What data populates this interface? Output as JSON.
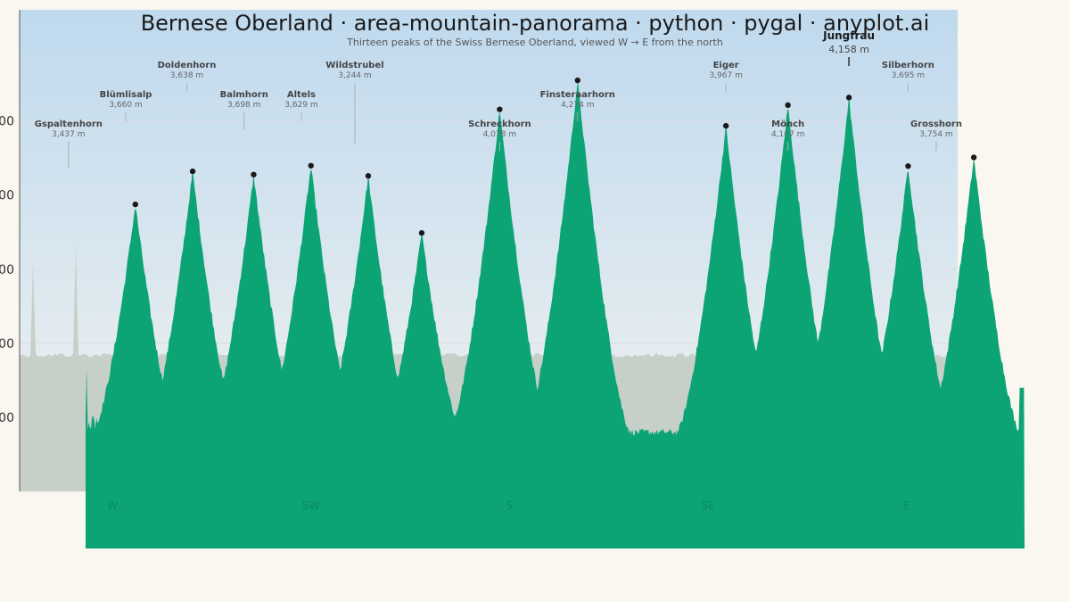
{
  "chart_data": {
    "type": "area",
    "title": "Bernese Oberland · area-mountain-panorama · python · pygal · anyplot.ai",
    "subtitle": "Thirteen peaks of the Swiss Bernese Oberland, viewed W → E from the north",
    "ylim": [
      1500,
      4750
    ],
    "y_ticks": [
      {
        "value": 2000,
        "label": "00"
      },
      {
        "value": 2500,
        "label": "00"
      },
      {
        "value": 3000,
        "label": "00"
      },
      {
        "value": 3500,
        "label": "00"
      },
      {
        "value": 4000,
        "label": "00"
      }
    ],
    "x_ticks": [
      "W",
      "SW",
      "S",
      "SE",
      "E"
    ],
    "x_range": [
      0,
      100
    ],
    "ridge_level": 2420,
    "base_level": 1900,
    "highlight": "Jungfrau",
    "peaks": [
      {
        "name": "Gspaltenhorn",
        "elevation": 3437,
        "elevation_label": "3,437 m",
        "x": 5.3
      },
      {
        "name": "Blümlisalp",
        "elevation": 3660,
        "elevation_label": "3,660 m",
        "x": 11.4
      },
      {
        "name": "Doldenhorn",
        "elevation": 3638,
        "elevation_label": "3,638 m",
        "x": 17.9
      },
      {
        "name": "Balmhorn",
        "elevation": 3698,
        "elevation_label": "3,698 m",
        "x": 24.0
      },
      {
        "name": "Altels",
        "elevation": 3629,
        "elevation_label": "3,629 m",
        "x": 30.1
      },
      {
        "name": "Wildstrubel",
        "elevation": 3244,
        "elevation_label": "3,244 m",
        "x": 35.8
      },
      {
        "name": "Schreckhorn",
        "elevation": 4078,
        "elevation_label": "4,078 m",
        "x": 44.1
      },
      {
        "name": "Finsteraarhorn",
        "elevation": 4274,
        "elevation_label": "4,274 m",
        "x": 52.4
      },
      {
        "name": "Eiger",
        "elevation": 3967,
        "elevation_label": "3,967 m",
        "x": 68.2
      },
      {
        "name": "Mönch",
        "elevation": 4107,
        "elevation_label": "4,107 m",
        "x": 74.8
      },
      {
        "name": "Jungfrau",
        "elevation": 4158,
        "elevation_label": "4,158 m",
        "x": 81.3
      },
      {
        "name": "Silberhorn",
        "elevation": 3695,
        "elevation_label": "3,695 m",
        "x": 87.6
      },
      {
        "name": "Grosshorn",
        "elevation": 3754,
        "elevation_label": "3,754 m",
        "x": 94.6
      }
    ],
    "colors": {
      "fill": "#0ca475",
      "ridge_bg": "#c6d0c9",
      "sky_top": "#bfd9ee",
      "sky_bottom": "#f2f3f0",
      "background": "#faf7f0",
      "marker": "#1a1a1a"
    }
  }
}
